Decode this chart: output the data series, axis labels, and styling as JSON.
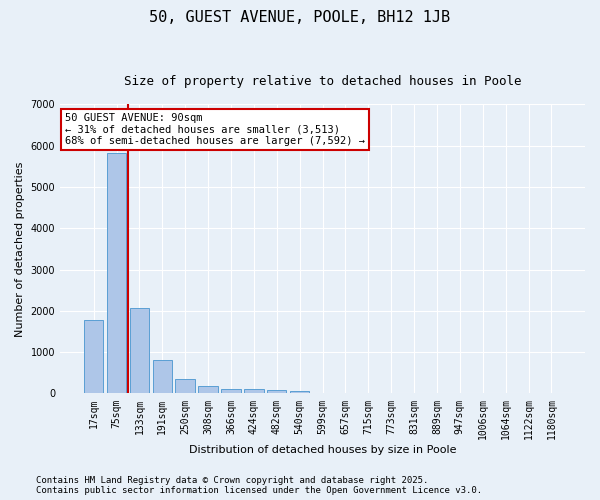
{
  "title": "50, GUEST AVENUE, POOLE, BH12 1JB",
  "subtitle": "Size of property relative to detached houses in Poole",
  "xlabel": "Distribution of detached houses by size in Poole",
  "ylabel": "Number of detached properties",
  "categories": [
    "17sqm",
    "75sqm",
    "133sqm",
    "191sqm",
    "250sqm",
    "308sqm",
    "366sqm",
    "424sqm",
    "482sqm",
    "540sqm",
    "599sqm",
    "657sqm",
    "715sqm",
    "773sqm",
    "831sqm",
    "889sqm",
    "947sqm",
    "1006sqm",
    "1064sqm",
    "1122sqm",
    "1180sqm"
  ],
  "values": [
    1780,
    5820,
    2080,
    820,
    340,
    190,
    120,
    110,
    80,
    60,
    0,
    0,
    0,
    0,
    0,
    0,
    0,
    0,
    0,
    0,
    0
  ],
  "bar_color": "#aec6e8",
  "bar_edge_color": "#5a9fd4",
  "vline_color": "#cc0000",
  "vline_x_index": 1.5,
  "annotation_text": "50 GUEST AVENUE: 90sqm\n← 31% of detached houses are smaller (3,513)\n68% of semi-detached houses are larger (7,592) →",
  "annotation_box_color": "#ffffff",
  "annotation_box_edge_color": "#cc0000",
  "ylim": [
    0,
    7000
  ],
  "yticks": [
    0,
    1000,
    2000,
    3000,
    4000,
    5000,
    6000,
    7000
  ],
  "background_color": "#e8f0f8",
  "grid_color": "#ffffff",
  "footer_line1": "Contains HM Land Registry data © Crown copyright and database right 2025.",
  "footer_line2": "Contains public sector information licensed under the Open Government Licence v3.0.",
  "title_fontsize": 11,
  "subtitle_fontsize": 9,
  "axis_label_fontsize": 8,
  "tick_fontsize": 7,
  "annotation_fontsize": 7.5,
  "footer_fontsize": 6.5
}
